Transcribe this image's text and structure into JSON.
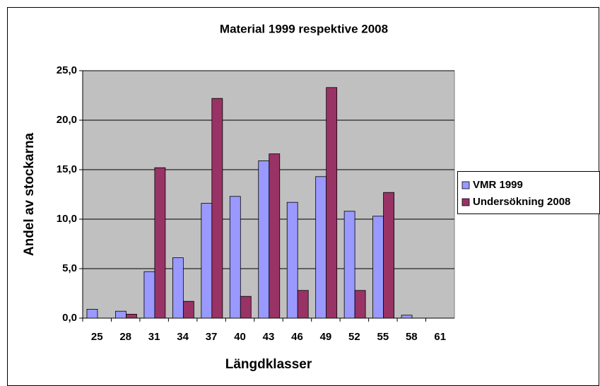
{
  "chart_data": {
    "type": "bar",
    "title": "Material 1999 respektive 2008",
    "xlabel": "Längdklasser",
    "ylabel": "Andel av stockarna",
    "categories": [
      "25",
      "28",
      "31",
      "34",
      "37",
      "40",
      "43",
      "46",
      "49",
      "52",
      "55",
      "58",
      "61"
    ],
    "series": [
      {
        "name": "VMR 1999",
        "color": "#9999ff",
        "values": [
          0.9,
          0.7,
          4.7,
          6.1,
          11.6,
          12.3,
          15.9,
          11.7,
          14.3,
          10.8,
          10.3,
          0.3,
          0
        ]
      },
      {
        "name": "Undersökning 2008",
        "color": "#993366",
        "values": [
          0,
          0.4,
          15.2,
          1.7,
          22.2,
          2.2,
          16.6,
          2.8,
          23.3,
          2.8,
          12.7,
          0,
          0
        ]
      }
    ],
    "ylim": [
      0,
      25
    ],
    "yticks": [
      {
        "value": 0,
        "label": "0,0"
      },
      {
        "value": 5,
        "label": "5,0"
      },
      {
        "value": 10,
        "label": "10,0"
      },
      {
        "value": 15,
        "label": "15,0"
      },
      {
        "value": 20,
        "label": "20,0"
      },
      {
        "value": 25,
        "label": "25,0"
      }
    ],
    "grid": true,
    "legend": "right"
  }
}
